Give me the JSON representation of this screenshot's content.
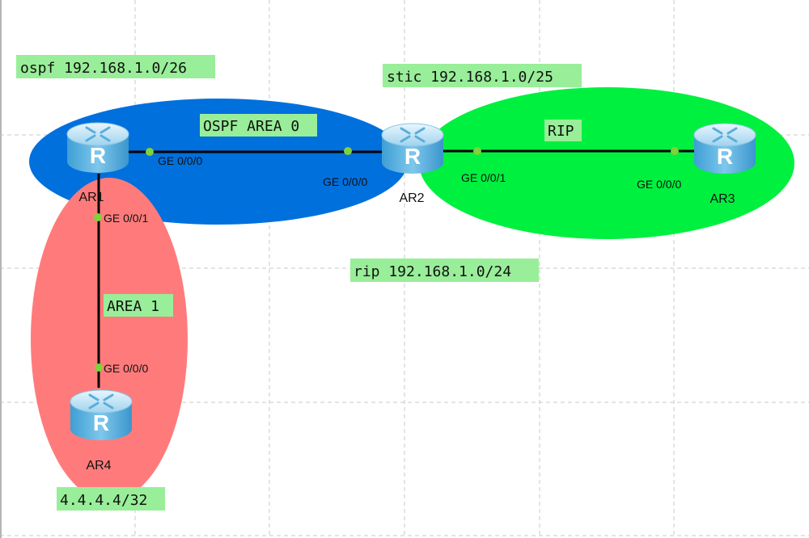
{
  "colors": {
    "area0": "#0070dd",
    "rip_area": "#00f040",
    "area1": "#ff7b7b",
    "label_bg": "#99ee99",
    "port_dot": "#7ed23a",
    "grid": "#c8c8c8"
  },
  "labels": {
    "ospf_net": "ospf 192.168.1.0/26",
    "static_net": "stic 192.168.1.0/25",
    "ospf_area0": "OSPF AREA 0",
    "rip": "RIP",
    "rip_net": "rip 192.168.1.0/24",
    "area1": "AREA 1",
    "loopback": "4.4.4.4/32"
  },
  "routers": {
    "ar1": {
      "name": "AR1",
      "icon": "router-icon"
    },
    "ar2": {
      "name": "AR2",
      "icon": "router-icon"
    },
    "ar3": {
      "name": "AR3",
      "icon": "router-icon"
    },
    "ar4": {
      "name": "AR4",
      "icon": "router-icon"
    }
  },
  "ports": {
    "ar1_ge000": "GE 0/0/0",
    "ar2_ge000": "GE 0/0/0",
    "ar2_ge001": "GE 0/0/1",
    "ar3_ge000": "GE 0/0/0",
    "ar1_ge001": "GE 0/0/1",
    "ar4_ge000": "GE 0/0/0"
  }
}
